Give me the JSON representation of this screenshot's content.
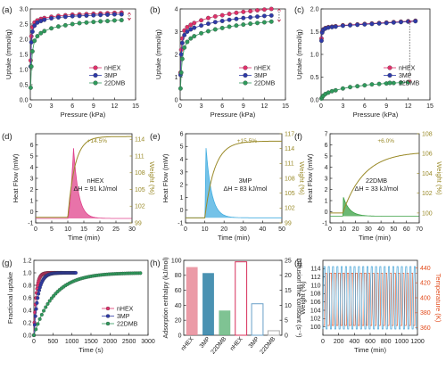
{
  "colors": {
    "nhex": "#e0306a",
    "mp3": "#2e3aa8",
    "dmb22": "#2f9a5c",
    "dsc_a": "#e0448c",
    "dsc_b": "#44aee0",
    "dsc_c": "#3aa043",
    "weight": "#9a8a28",
    "temp": "#e24a1a",
    "bar_nhex": "#e88a98",
    "bar_3mp": "#2a7fa5",
    "bar_22dmb": "#68b880"
  },
  "chart_data": [
    {
      "panel": "(a)",
      "type": "scatter",
      "xlabel": "Pressure (kPa)",
      "ylabel": "Uptake (mmol/g)",
      "xlim": [
        0,
        15
      ],
      "ylim": [
        0,
        3.0
      ],
      "xticks": [
        "0",
        "3",
        "6",
        "9",
        "12",
        "15"
      ],
      "yticks": [
        "0.0",
        "0.5",
        "1.0",
        "1.5",
        "2.0",
        "2.5",
        "3.0"
      ],
      "legend": [
        "nHEX",
        "3MP",
        "22DMB"
      ],
      "series": [
        {
          "name": "nHEX",
          "x": [
            0.05,
            0.15,
            0.3,
            0.6,
            1,
            1.5,
            2,
            3,
            4,
            5,
            6,
            7,
            8,
            9,
            10,
            11,
            12,
            13
          ],
          "y": [
            1.3,
            2.1,
            2.4,
            2.55,
            2.62,
            2.67,
            2.7,
            2.74,
            2.77,
            2.79,
            2.81,
            2.82,
            2.83,
            2.84,
            2.85,
            2.86,
            2.87,
            2.88
          ]
        },
        {
          "name": "3MP",
          "x": [
            0.05,
            0.15,
            0.3,
            0.6,
            1,
            1.5,
            2,
            3,
            4,
            5,
            6,
            7,
            8,
            9,
            10,
            11,
            12,
            13
          ],
          "y": [
            1.1,
            1.9,
            2.25,
            2.45,
            2.55,
            2.6,
            2.64,
            2.69,
            2.72,
            2.74,
            2.76,
            2.77,
            2.78,
            2.79,
            2.8,
            2.81,
            2.82,
            2.82
          ]
        },
        {
          "name": "22DMB",
          "x": [
            0.05,
            0.15,
            0.3,
            0.6,
            1,
            1.5,
            2,
            3,
            4,
            5,
            6,
            7,
            8,
            9,
            10,
            11,
            12,
            13
          ],
          "y": [
            0.4,
            1.1,
            1.6,
            1.95,
            2.1,
            2.2,
            2.27,
            2.36,
            2.42,
            2.46,
            2.5,
            2.53,
            2.55,
            2.57,
            2.59,
            2.6,
            2.62,
            2.63
          ]
        }
      ]
    },
    {
      "panel": "(b)",
      "type": "scatter",
      "xlabel": "Pressure (kPa)",
      "ylabel": "Uptake (mmol/g)",
      "xlim": [
        0,
        15
      ],
      "ylim": [
        0,
        4
      ],
      "xticks": [
        "0",
        "3",
        "6",
        "9",
        "12",
        "15"
      ],
      "yticks": [
        "0",
        "1",
        "2",
        "3",
        "4"
      ],
      "legend": [
        "nHEX",
        "3MP",
        "22DMB"
      ],
      "series": [
        {
          "name": "nHEX",
          "x": [
            0.05,
            0.15,
            0.3,
            0.6,
            1,
            1.5,
            2,
            3,
            4,
            5,
            6,
            7,
            8,
            9,
            10,
            11,
            12,
            13
          ],
          "y": [
            1.2,
            2.2,
            2.7,
            3.05,
            3.2,
            3.3,
            3.38,
            3.5,
            3.6,
            3.67,
            3.72,
            3.78,
            3.83,
            3.87,
            3.9,
            3.94,
            3.97,
            4.0
          ]
        },
        {
          "name": "3MP",
          "x": [
            0.05,
            0.15,
            0.3,
            0.6,
            1,
            1.5,
            2,
            3,
            4,
            5,
            6,
            7,
            8,
            9,
            10,
            11,
            12,
            13
          ],
          "y": [
            1.1,
            2.0,
            2.5,
            2.85,
            3.0,
            3.1,
            3.17,
            3.27,
            3.35,
            3.42,
            3.47,
            3.52,
            3.56,
            3.6,
            3.63,
            3.66,
            3.69,
            3.71
          ]
        },
        {
          "name": "22DMB",
          "x": [
            0.05,
            0.15,
            0.3,
            0.6,
            1,
            1.5,
            2,
            3,
            4,
            5,
            6,
            7,
            8,
            9,
            10,
            11,
            12,
            13
          ],
          "y": [
            0.5,
            1.2,
            1.8,
            2.3,
            2.55,
            2.7,
            2.8,
            2.93,
            3.02,
            3.1,
            3.16,
            3.22,
            3.27,
            3.31,
            3.35,
            3.38,
            3.41,
            3.44
          ]
        }
      ]
    },
    {
      "panel": "(c)",
      "type": "scatter",
      "xlabel": "Pressure (kPa)",
      "ylabel": "Uptake (mmol/g)",
      "xlim": [
        0,
        15
      ],
      "ylim": [
        0,
        2.0
      ],
      "xticks": [
        "0",
        "3",
        "6",
        "9",
        "12",
        "15"
      ],
      "yticks": [
        "0.0",
        "0.5",
        "1.0",
        "1.5",
        "2.0"
      ],
      "legend": [
        "nHEX",
        "3MP",
        "22DMB"
      ],
      "series": [
        {
          "name": "nHEX",
          "x": [
            0.05,
            0.15,
            0.3,
            0.6,
            1,
            1.5,
            2,
            3,
            4,
            5,
            6,
            7,
            8,
            9,
            10,
            11,
            12,
            13
          ],
          "y": [
            1.35,
            1.5,
            1.55,
            1.58,
            1.6,
            1.61,
            1.62,
            1.64,
            1.65,
            1.66,
            1.67,
            1.68,
            1.69,
            1.7,
            1.71,
            1.72,
            1.73,
            1.74
          ]
        },
        {
          "name": "3MP",
          "x": [
            0.05,
            0.15,
            0.3,
            0.6,
            1,
            1.5,
            2,
            3,
            4,
            5,
            6,
            7,
            8,
            9,
            10,
            11,
            12,
            13
          ],
          "y": [
            1.3,
            1.48,
            1.54,
            1.57,
            1.59,
            1.6,
            1.61,
            1.63,
            1.64,
            1.65,
            1.66,
            1.67,
            1.68,
            1.69,
            1.7,
            1.71,
            1.72,
            1.73
          ]
        },
        {
          "name": "22DMB",
          "x": [
            0.05,
            0.15,
            0.3,
            0.6,
            1,
            1.5,
            2,
            3,
            4,
            5,
            6,
            7,
            8,
            9,
            10,
            11,
            12
          ],
          "y": [
            0.03,
            0.06,
            0.09,
            0.13,
            0.16,
            0.19,
            0.21,
            0.25,
            0.28,
            0.3,
            0.32,
            0.34,
            0.35,
            0.36,
            0.37,
            0.38,
            0.39
          ]
        }
      ]
    },
    {
      "panel": "(d)",
      "type": "line",
      "xlabel": "Time (min)",
      "ylabel": "Heat Flow (mW)",
      "y2label": "Weight (%)",
      "xlim": [
        0,
        30
      ],
      "ylim": [
        -1,
        7
      ],
      "y2lim": [
        99,
        115
      ],
      "xticks": [
        "0",
        "5",
        "10",
        "15",
        "20",
        "25",
        "30"
      ],
      "yticks": [
        "-1",
        "0",
        "1",
        "2",
        "3",
        "4",
        "5",
        "6"
      ],
      "y2ticks": [
        "99",
        "102",
        "105",
        "108",
        "111",
        "114"
      ],
      "annotation": "+14.5%",
      "label": "nHEX",
      "dh": "ΔH = 91 kJ/mol",
      "heat": {
        "t0": 10,
        "peak_t": 11.8,
        "peak": 5.7,
        "end": 18,
        "base": -0.6
      },
      "weight": {
        "t0": 10,
        "start": 100,
        "end": 114.5,
        "k": 0.45
      }
    },
    {
      "panel": "(e)",
      "type": "line",
      "xlabel": "Time (min)",
      "ylabel": "Heat Flow (mW)",
      "y2label": "Weight (%)",
      "xlim": [
        0,
        50
      ],
      "ylim": [
        -1,
        6
      ],
      "y2lim": [
        99,
        117
      ],
      "xticks": [
        "0",
        "10",
        "20",
        "30",
        "40",
        "50"
      ],
      "yticks": [
        "-1",
        "0",
        "1",
        "2",
        "3",
        "4",
        "5",
        "6"
      ],
      "y2ticks": [
        "99",
        "102",
        "105",
        "108",
        "111",
        "114",
        "117"
      ],
      "annotation": "+15.5%",
      "label": "3MP",
      "dh": "ΔH = 83 kJ/mol",
      "heat": {
        "t0": 10,
        "peak_t": 10.6,
        "peak": 5.0,
        "end": 22,
        "base": -0.6
      },
      "weight": {
        "t0": 10,
        "start": 100,
        "end": 115.5,
        "k": 0.2
      }
    },
    {
      "panel": "(f)",
      "type": "line",
      "xlabel": "Time (min)",
      "ylabel": "Heat Flow (mW)",
      "y2label": "Weight (%)",
      "xlim": [
        0,
        70
      ],
      "ylim": [
        -1,
        7
      ],
      "y2lim": [
        99,
        108
      ],
      "xticks": [
        "0",
        "10",
        "20",
        "30",
        "40",
        "50",
        "60",
        "70"
      ],
      "yticks": [
        "-1",
        "0",
        "1",
        "2",
        "3",
        "4",
        "5",
        "6",
        "7"
      ],
      "y2ticks": [
        "100",
        "102",
        "104",
        "106",
        "108"
      ],
      "annotation": "+6.0%",
      "label": "22DMB",
      "dh": "ΔH = 33 kJ/mol",
      "heat": {
        "t0": 10,
        "peak_t": 10.5,
        "peak": 1.3,
        "end": 30,
        "base": -0.4
      },
      "weight": {
        "t0": 10,
        "start": 100,
        "end": 106.2,
        "k": 0.06
      }
    },
    {
      "panel": "(g)",
      "type": "scatter",
      "xlabel": "Time (s)",
      "ylabel": "Fractional uptake",
      "xlim": [
        0,
        3000
      ],
      "ylim": [
        0,
        1.2
      ],
      "xticks": [
        "0",
        "500",
        "1000",
        "1500",
        "2000",
        "2500",
        "3000"
      ],
      "yticks": [
        "0.0",
        "0.2",
        "0.4",
        "0.6",
        "0.8",
        "1.0",
        "1.2"
      ],
      "legend": [
        "nHEX",
        "3MP",
        "22DMB"
      ],
      "series": [
        {
          "name": "nHEX",
          "tau": 60,
          "xmax": 750
        },
        {
          "name": "3MP",
          "tau": 110,
          "xmax": 1100
        },
        {
          "name": "22DMB",
          "tau": 520,
          "xmax": 2850
        }
      ]
    },
    {
      "panel": "(h)",
      "type": "bar",
      "ylabel": "Adsorption enthalpy (kJ/mol)",
      "y2label": "Diffusion time constant (s⁻¹)",
      "ylim": [
        0,
        100
      ],
      "y2lim": [
        0,
        25
      ],
      "yticks": [
        "0",
        "20",
        "40",
        "60",
        "80",
        "100"
      ],
      "y2ticks": [
        "0",
        "5",
        "10",
        "15",
        "20",
        "25"
      ],
      "categories": [
        "nHEX",
        "3MP",
        "22DMB",
        "nHEX",
        "3MP",
        "22DMB"
      ],
      "enthalpy": [
        91,
        83,
        33
      ],
      "diffusion": [
        24.5,
        10.5,
        1.5
      ]
    },
    {
      "panel": "(i)",
      "type": "line",
      "xlabel": "Time (min)",
      "ylabel": "Weight (%)",
      "y2label": "Temperature (K)",
      "xlim": [
        0,
        1200
      ],
      "ylim": [
        98,
        116
      ],
      "y2lim": [
        350,
        450
      ],
      "xticks": [
        "0",
        "200",
        "400",
        "600",
        "800",
        "1000",
        "1200"
      ],
      "yticks": [
        "100",
        "102",
        "104",
        "106",
        "108",
        "110",
        "112",
        "114"
      ],
      "y2ticks": [
        "360",
        "380",
        "400",
        "420",
        "440"
      ],
      "cycles": 22,
      "weight_range": [
        99.5,
        114.5
      ],
      "temp_range": [
        363,
        433
      ]
    }
  ]
}
